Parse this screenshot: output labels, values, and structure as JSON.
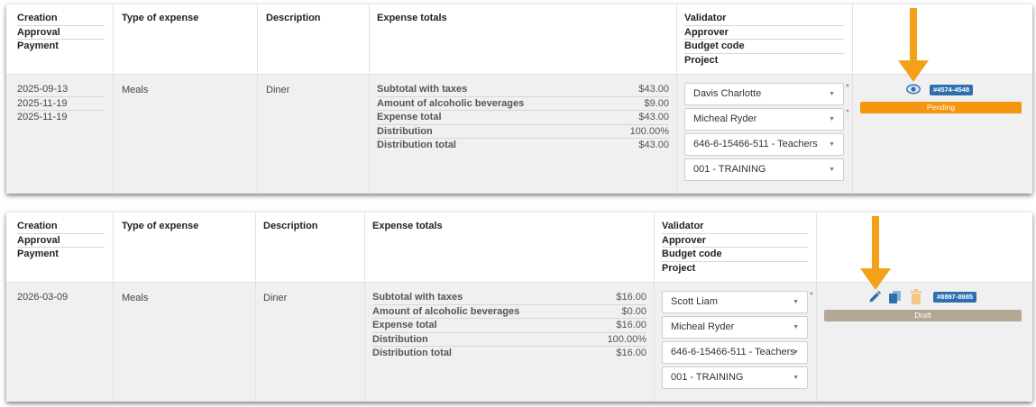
{
  "headers": {
    "dates_stack": [
      "Creation",
      "Approval",
      "Payment"
    ],
    "type_of_expense": "Type of expense",
    "description": "Description",
    "expense_totals": "Expense totals",
    "validator_stack": [
      "Validator",
      "Approver",
      "Budget code",
      "Project"
    ]
  },
  "colors": {
    "pending": "#f5940d",
    "draft": "#b3a896",
    "badge": "#2f6fb0",
    "arrow": "#f5a01a",
    "icon_blue": "#2f6fb0"
  },
  "expenses": [
    {
      "dates": [
        "2025-09-13",
        "2025-11-19",
        "2025-11-19"
      ],
      "type": "Meals",
      "description": "Diner",
      "totals": [
        {
          "label": "Subtotal with taxes",
          "value": "$43.00"
        },
        {
          "label": "Amount of alcoholic beverages",
          "value": "$9.00"
        },
        {
          "label": "Expense total",
          "value": "$43.00"
        },
        {
          "label": "Distribution",
          "value": "100.00%"
        },
        {
          "label": "Distribution total",
          "value": "$43.00"
        }
      ],
      "validator": "Davis Charlotte",
      "approver": "Micheal Ryder",
      "budget_code": "646-6-15466-511 - Teachers",
      "project": "001 - TRAINING",
      "required": [
        "*",
        "*"
      ],
      "id_badge": "#4574-4548",
      "status": "Pending",
      "icons": [
        "eye-icon"
      ]
    },
    {
      "dates": [
        "2026-03-09"
      ],
      "type": "Meals",
      "description": "Diner",
      "totals": [
        {
          "label": "Subtotal with taxes",
          "value": "$16.00"
        },
        {
          "label": "Amount of alcoholic beverages",
          "value": "$0.00"
        },
        {
          "label": "Expense total",
          "value": "$16.00"
        },
        {
          "label": "Distribution",
          "value": "100.00%"
        },
        {
          "label": "Distribution total",
          "value": "$16.00"
        }
      ],
      "validator": "Scott Liam",
      "approver": "Micheal Ryder",
      "budget_code": "646-6-15466-511 - Teachers",
      "project": "001 - TRAINING",
      "required": [
        "*"
      ],
      "id_badge": "#8897-8985",
      "status": "Draft",
      "icons": [
        "edit-pencil-icon",
        "copy-icon",
        "trash-icon"
      ]
    }
  ]
}
